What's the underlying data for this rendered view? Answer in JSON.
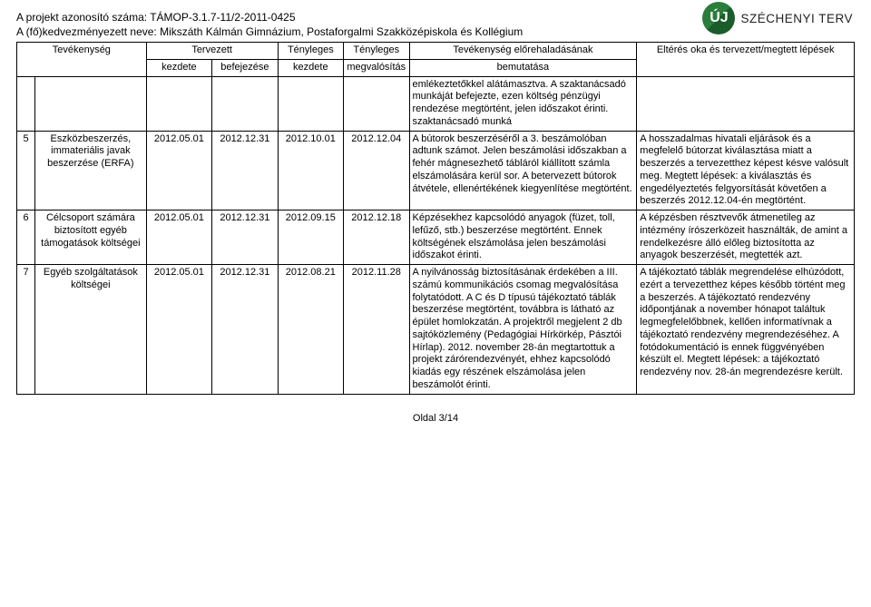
{
  "header": {
    "project_id_line": "A projekt azonosító száma: TÁMOP-3.1.7-11/2-2011-0425",
    "beneficiary_line": "A (fő)kedvezményezett neve: Mikszáth Kálmán Gimnázium, Postaforgalmi Szakközépiskola és Kollégium"
  },
  "logo": {
    "mark_text": "ÚJ",
    "brand_text": "SZÉCHENYI TERV"
  },
  "table": {
    "head": {
      "activity": "Tevékenység",
      "planned": "Tervezett",
      "planned_start": "kezdete",
      "planned_end": "befejezése",
      "actual_start_top": "Tényleges",
      "actual_start_bottom": "kezdete",
      "actual_impl_top": "Tényleges",
      "actual_impl_bottom": "megvalósítás",
      "progress_top": "Tevékenység előrehaladásának",
      "progress_bottom": "bemutatása",
      "deviation": "Eltérés oka és tervezett/megtett lépések"
    },
    "carry_row": {
      "progress": "emlékeztetőkkel alátámasztva. A szaktanácsadó munkáját befejezte, ezen költség pénzügyi rendezése megtörtént, jelen időszakot érinti. szaktanácsadó munká"
    },
    "rows": [
      {
        "num": "5",
        "activity": "Eszközbeszerzés, immateriális javak beszerzése (ERFA)",
        "planned_start": "2012.05.01",
        "planned_end": "2012.12.31",
        "actual_start": "2012.10.01",
        "actual_impl": "2012.12.04",
        "progress": "A bútorok beszerzéséről a 3. beszámolóban adtunk számot. Jelen beszámolási időszakban a fehér mágnesezhető tábláról kiállított számla elszámolására kerül sor. A betervezett bútorok átvétele, ellenértékének kiegyenlítése megtörtént.",
        "deviation": "A hosszadalmas hivatali eljárások és a megfelelő bútorzat kiválasztása miatt a beszerzés a tervezetthez képest késve valósult meg. Megtett lépések: a kiválasztás és engedélyeztetés felgyorsítását követően a beszerzés 2012.12.04-én megtörtént."
      },
      {
        "num": "6",
        "activity": "Célcsoport számára biztosított egyéb támogatások költségei",
        "planned_start": "2012.05.01",
        "planned_end": "2012.12.31",
        "actual_start": "2012.09.15",
        "actual_impl": "2012.12.18",
        "progress": "Képzésekhez kapcsolódó anyagok (füzet, toll, lefűző, stb.) beszerzése megtörtént. Ennek költségének elszámolása jelen beszámolási időszakot érinti.",
        "deviation": "A képzésben résztvevők átmenetileg az intézmény írószerközeit használták, de amint a rendelkezésre álló előleg biztosította az anyagok beszerzését, megtették azt."
      },
      {
        "num": "7",
        "activity": "Egyéb szolgáltatások költségei",
        "planned_start": "2012.05.01",
        "planned_end": "2012.12.31",
        "actual_start": "2012.08.21",
        "actual_impl": "2012.11.28",
        "progress": "A nyilvánosság biztosításának érdekében a III. számú kommunikációs csomag megvalósítása folytatódott. A C és D típusú tájékoztató táblák beszerzése megtörtént, továbbra is látható az épület homlokzatán. A projektről megjelent 2 db sajtóközlemény (Pedagógiai Hírkörkép, Pásztói Hírlap). 2012. november 28-án megtartottuk a projekt zárórendezvényét, ehhez kapcsolódó kiadás egy részének elszámolása jelen beszámolót érinti.",
        "deviation": "A tájékoztató táblák megrendelése elhúzódott, ezért a tervezetthez képes később történt meg a beszerzés. A tájékoztató rendezvény időpontjának a november hónapot találtuk legmegfelelőbbnek, kellően informatívnak a tájékoztató rendezvény megrendezéséhez. A fotódokumentáció is ennek függvényében készült el. Megtett lépések: a tájékoztató rendezvény nov. 28-án megrendezésre került."
      }
    ]
  },
  "footer": {
    "page": "Oldal 3/14"
  },
  "colors": {
    "border": "#000000",
    "text": "#000000",
    "background": "#ffffff",
    "logo_green": "#2a7d3a"
  }
}
